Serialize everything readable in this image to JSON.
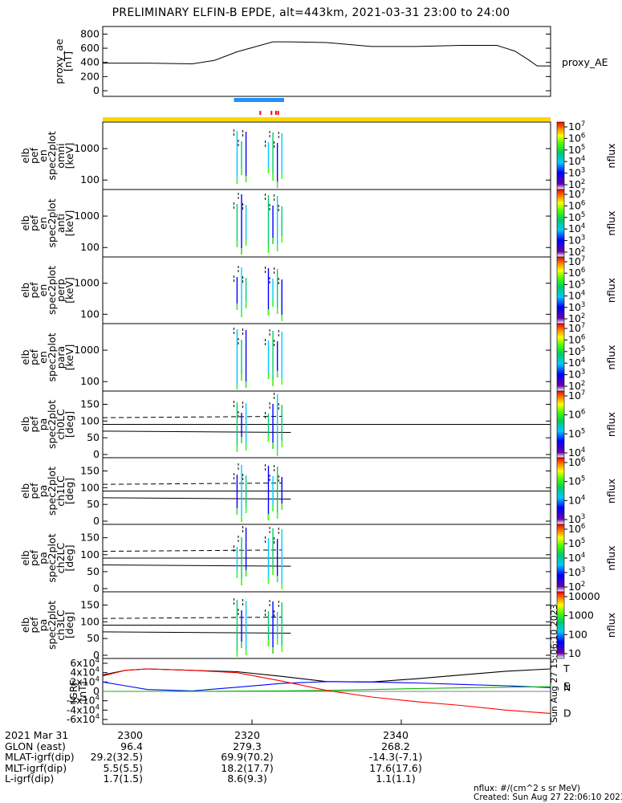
{
  "title": "PRELIMINARY ELFIN-B EPDE, alt=443km, 2021-03-31 23:00 to 24:00",
  "colors": {
    "orbit_bar_blue": "#1e90ff",
    "orbit_tick_red": "#ff0000",
    "sun_bar_yellow": "#ffd700",
    "igrf_T": "#000000",
    "igrf_N": "#0000ff",
    "igrf_E": "#00bb00",
    "igrf_D": "#ff0000"
  },
  "chart_data": [
    {
      "type": "line",
      "name": "proxy_ae",
      "ylabel_lines": [
        "proxy_ae",
        "[nT]"
      ],
      "series_label": "proxy_AE",
      "ylim": [
        0,
        850
      ],
      "yticks": [
        "0",
        "200",
        "400",
        "600",
        "800"
      ],
      "x": [
        23.0,
        23.1,
        23.2,
        23.25,
        23.3,
        23.38,
        23.42,
        23.5,
        23.6,
        23.7,
        23.8,
        23.88,
        23.92,
        23.95,
        23.97,
        24.0
      ],
      "y": [
        390,
        390,
        380,
        430,
        550,
        690,
        690,
        680,
        625,
        625,
        640,
        640,
        560,
        440,
        350,
        350
      ]
    },
    {
      "type": "heatmap",
      "name": "elb_pef_en_spec2plot_omni",
      "ylabel_lines": [
        "elb",
        "pef",
        "en",
        "spec2plot",
        "omni",
        "[keV]"
      ],
      "scale": "log",
      "yticks": [
        "100",
        "1000"
      ],
      "colorbar": {
        "label": "nflux",
        "ticks": [
          "10^2",
          "10^3",
          "10^4",
          "10^5",
          "10^6",
          "10^7"
        ]
      }
    },
    {
      "type": "heatmap",
      "name": "elb_pef_en_spec2plot_anti",
      "ylabel_lines": [
        "elb",
        "pef",
        "en",
        "spec2plot",
        "anti",
        "[keV]"
      ],
      "scale": "log",
      "yticks": [
        "100",
        "1000"
      ],
      "colorbar": {
        "label": "nflux",
        "ticks": [
          "10^2",
          "10^3",
          "10^4",
          "10^5",
          "10^6",
          "10^7"
        ]
      }
    },
    {
      "type": "heatmap",
      "name": "elb_pef_en_spec2plot_perp",
      "ylabel_lines": [
        "elb",
        "pef",
        "en",
        "spec2plot",
        "perp",
        "[keV]"
      ],
      "scale": "log",
      "yticks": [
        "100",
        "1000"
      ],
      "colorbar": {
        "label": "nflux",
        "ticks": [
          "10^2",
          "10^3",
          "10^4",
          "10^5",
          "10^6",
          "10^7"
        ]
      }
    },
    {
      "type": "heatmap",
      "name": "elb_pef_en_spec2plot_para",
      "ylabel_lines": [
        "elb",
        "pef",
        "en",
        "spec2plot",
        "para",
        "[keV]"
      ],
      "scale": "log",
      "yticks": [
        "100",
        "1000"
      ],
      "colorbar": {
        "label": "nflux",
        "ticks": [
          "10^2",
          "10^3",
          "10^4",
          "10^5",
          "10^6",
          "10^7"
        ]
      }
    },
    {
      "type": "heatmap",
      "name": "elb_pef_pa_spec2plot_ch0LC",
      "ylabel_lines": [
        "elb",
        "pef",
        "pa",
        "spec2plot",
        "ch0LC",
        "[deg]"
      ],
      "ylim": [
        0,
        180
      ],
      "yticks": [
        "0",
        "50",
        "100",
        "150"
      ],
      "colorbar": {
        "label": "nflux",
        "ticks": [
          "10^4",
          "10^5",
          "10^6",
          "10^7"
        ]
      }
    },
    {
      "type": "heatmap",
      "name": "elb_pef_pa_spec2plot_ch1LC",
      "ylabel_lines": [
        "elb",
        "pef",
        "pa",
        "spec2plot",
        "ch1LC",
        "[deg]"
      ],
      "ylim": [
        0,
        180
      ],
      "yticks": [
        "0",
        "50",
        "100",
        "150"
      ],
      "colorbar": {
        "label": "nflux",
        "ticks": [
          "10^3",
          "10^4",
          "10^5",
          "10^6"
        ]
      }
    },
    {
      "type": "heatmap",
      "name": "elb_pef_pa_spec2plot_ch2LC",
      "ylabel_lines": [
        "elb",
        "pef",
        "pa",
        "spec2plot",
        "ch2LC",
        "[deg]"
      ],
      "ylim": [
        0,
        180
      ],
      "yticks": [
        "0",
        "50",
        "100",
        "150"
      ],
      "colorbar": {
        "label": "nflux",
        "ticks": [
          "10^2",
          "10^3",
          "10^4",
          "10^5",
          "10^6"
        ]
      }
    },
    {
      "type": "heatmap",
      "name": "elb_pef_pa_spec2plot_ch3LC",
      "ylabel_lines": [
        "elb",
        "pef",
        "pa",
        "spec2plot",
        "ch3LC",
        "[deg]"
      ],
      "ylim": [
        0,
        180
      ],
      "yticks": [
        "0",
        "50",
        "100",
        "150"
      ],
      "colorbar": {
        "label": "nflux",
        "ticks": [
          "10",
          "100",
          "1000",
          "10000"
        ]
      }
    },
    {
      "type": "line",
      "name": "IGRF",
      "ylabel_lines": [
        "IGRF",
        "[nT]"
      ],
      "ylim": [
        -60000,
        60000
      ],
      "yticks": [
        "-6x10^4",
        "-4x10^4",
        "-2x10^4",
        "0",
        "2x10^4",
        "4x10^4",
        "6x10^4"
      ],
      "x": [
        23.0,
        23.05,
        23.1,
        23.2,
        23.3,
        23.4,
        23.5,
        23.6,
        23.7,
        23.8,
        23.9,
        24.0
      ],
      "series": [
        {
          "name": "T",
          "values": [
            35000,
            45000,
            48000,
            45000,
            42000,
            32000,
            21000,
            20000,
            27000,
            35000,
            43000,
            48000
          ]
        },
        {
          "name": "N",
          "values": [
            20000,
            12000,
            4000,
            1000,
            9000,
            17000,
            21000,
            20000,
            18000,
            15000,
            12000,
            8000
          ]
        },
        {
          "name": "E",
          "values": [
            0,
            0,
            0,
            0,
            500,
            1000,
            2000,
            4000,
            6000,
            7500,
            9000,
            10000
          ]
        },
        {
          "name": "D",
          "values": [
            33000,
            45000,
            48000,
            45000,
            40000,
            22000,
            2000,
            -12000,
            -22000,
            -30000,
            -40000,
            -47000
          ]
        }
      ]
    }
  ],
  "xaxis": {
    "rows": [
      {
        "label": "2021 Mar 31",
        "values": [
          "2300",
          "2320",
          "2340"
        ]
      },
      {
        "label": "GLON (east)",
        "values": [
          "96.4",
          "279.3",
          "268.2"
        ]
      },
      {
        "label": "MLAT-igrf(dip)",
        "values": [
          "29.2(32.5)",
          "69.9(70.2)",
          "-14.3(-7.1)"
        ]
      },
      {
        "label": "MLT-igrf(dip)",
        "values": [
          "5.5(5.5)",
          "18.2(17.7)",
          "17.6(17.6)"
        ]
      },
      {
        "label": "L-igrf(dip)",
        "values": [
          "1.7(1.5)",
          "8.6(9.3)",
          "1.1(1.1)"
        ]
      }
    ]
  },
  "footer": {
    "units": "nflux: #/(cm^2 s sr MeV)",
    "created": "Created: Sun Aug 27 22:06:10 2023"
  },
  "side_stamp": "Sun Aug 27 15:06:10 2023"
}
